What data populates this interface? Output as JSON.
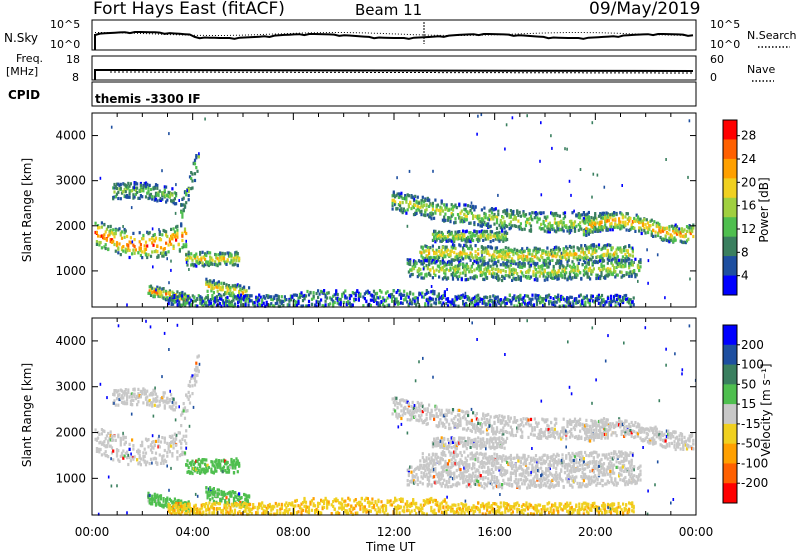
{
  "header": {
    "title": "Fort Hays East (fitACF)",
    "beam": "Beam 11",
    "date": "09/May/2019"
  },
  "top_panels": {
    "nsky": {
      "left_label": "N.Sky",
      "left_ticks": [
        "10^5",
        "10^0"
      ],
      "right_label": "N.Search",
      "right_ticks": [
        "10^5",
        "10^0"
      ]
    },
    "freq": {
      "left_label_1": "Freq.",
      "left_label_2": "[MHz]",
      "left_ticks": [
        "18",
        "8"
      ],
      "right_label": "Nave",
      "right_ticks": [
        "60",
        "0"
      ]
    },
    "cpid": {
      "label": "CPID",
      "value": "themis -3300 IF"
    }
  },
  "colors": {
    "power_scale": [
      "#0000ff",
      "#1e4fa0",
      "#3a7f5f",
      "#4fbf4f",
      "#a0d040",
      "#f0d020",
      "#ffa000",
      "#ff6000",
      "#ff0000"
    ],
    "velocity_scale": [
      "#0000ff",
      "#1e4fa0",
      "#3a7f5f",
      "#4fbf4f",
      "#c8c8c8",
      "#f0d020",
      "#ffa000",
      "#ff6000",
      "#ff0000"
    ]
  },
  "chart_data": [
    {
      "type": "heatmap",
      "ylabel": "Slant Range [km]",
      "xlabel": "",
      "ylim": [
        200,
        4500
      ],
      "yticks": [
        "1000",
        "2000",
        "3000",
        "4000"
      ],
      "xlim": [
        "00:00",
        "24:00"
      ],
      "colorbar": {
        "label": "Power [dB]",
        "ticks": [
          "4",
          "8",
          "12",
          "16",
          "20",
          "24",
          "28"
        ]
      }
    },
    {
      "type": "heatmap",
      "ylabel": "Slant Range [km]",
      "xlabel": "Time UT",
      "ylim": [
        200,
        4500
      ],
      "yticks": [
        "1000",
        "2000",
        "3000",
        "4000"
      ],
      "xticks": [
        "00:00",
        "04:00",
        "08:00",
        "12:00",
        "16:00",
        "20:00",
        "00:00"
      ],
      "colorbar": {
        "label": "Velocity [m s⁻¹]",
        "ticks": [
          "200",
          "100",
          "50",
          "15",
          "-15",
          "-50",
          "-100",
          "-200"
        ]
      }
    }
  ]
}
